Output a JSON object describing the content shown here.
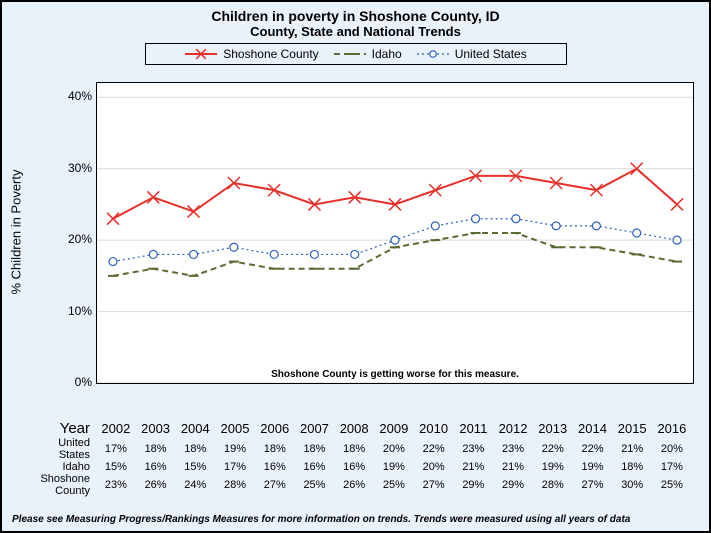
{
  "title": {
    "main": "Children in poverty in Shoshone County, ID",
    "sub": "County, State and National Trends"
  },
  "legend": {
    "items": [
      {
        "key": "county",
        "label": "Shoshone County"
      },
      {
        "key": "state",
        "label": "Idaho"
      },
      {
        "key": "nation",
        "label": "United States"
      }
    ]
  },
  "axes": {
    "ylabel": "% Children in Poverty",
    "ylim": [
      0,
      42
    ],
    "ytick_step": 10,
    "ytick_labels": [
      "0%",
      "10%",
      "20%",
      "30%",
      "40%"
    ],
    "gridline_color": "#d9d9d9"
  },
  "years": [
    2002,
    2003,
    2004,
    2005,
    2006,
    2007,
    2008,
    2009,
    2010,
    2011,
    2012,
    2013,
    2014,
    2015,
    2016
  ],
  "series": {
    "county": {
      "label": "Shoshone County",
      "color": "#e8302a",
      "line_width": 2,
      "dash": "",
      "marker": "x",
      "marker_size": 6,
      "values": [
        23,
        26,
        24,
        28,
        27,
        25,
        26,
        25,
        27,
        29,
        29,
        28,
        27,
        30,
        25
      ]
    },
    "state": {
      "label": "Idaho",
      "color": "#5a6b34",
      "line_width": 2,
      "dash": "6,4",
      "marker": "dash",
      "marker_size": 5,
      "values": [
        15,
        16,
        15,
        17,
        16,
        16,
        16,
        19,
        20,
        21,
        21,
        19,
        19,
        18,
        17
      ]
    },
    "nation": {
      "label": "United States",
      "color": "#2b5fbf",
      "line_width": 1.2,
      "dash": "2,3",
      "marker": "o",
      "marker_size": 4,
      "values": [
        17,
        18,
        18,
        19,
        18,
        18,
        18,
        20,
        22,
        23,
        23,
        22,
        22,
        21,
        20
      ]
    }
  },
  "table": {
    "year_label": "Year",
    "rows": [
      {
        "key": "nation",
        "label": "United States"
      },
      {
        "key": "state",
        "label": "Idaho"
      },
      {
        "key": "county",
        "label": "Shoshone County"
      }
    ]
  },
  "note_in_plot": "Shoshone County is getting worse for this measure.",
  "footnote": "Please see Measuring Progress/Rankings Measures for more information on trends. Trends were measured using all years of data",
  "plot": {
    "background_color": "#ffffff",
    "page_background": "#eaf2f9",
    "border_color": "#000000"
  }
}
